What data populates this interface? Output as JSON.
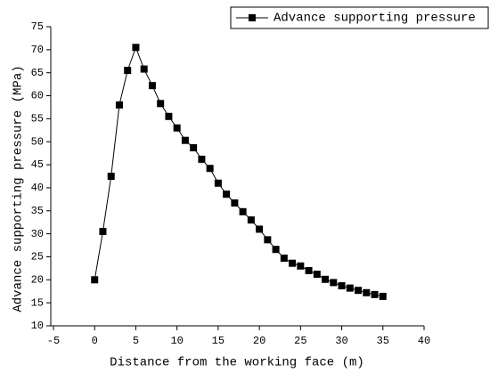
{
  "chart_data": {
    "type": "line",
    "x_label": "Distance from the working face (m)",
    "y_label": "Advance supporting pressure (MPa)",
    "x": [
      0,
      1,
      2,
      3,
      4,
      5,
      6,
      7,
      8,
      9,
      10,
      11,
      12,
      13,
      14,
      15,
      16,
      17,
      18,
      19,
      20,
      21,
      22,
      23,
      24,
      25,
      26,
      27,
      28,
      29,
      30,
      31,
      32,
      33,
      34,
      35
    ],
    "series": [
      {
        "name": "Advance supporting pressure",
        "color": "#000000",
        "values": [
          20,
          30.5,
          42.5,
          58,
          65.5,
          70.5,
          65.8,
          62.2,
          58.3,
          55.5,
          53,
          50.3,
          48.7,
          46.2,
          44.2,
          41,
          38.6,
          36.7,
          34.8,
          33,
          31,
          28.7,
          26.6,
          24.7,
          23.6,
          23,
          22,
          21.2,
          20.1,
          19.4,
          18.7,
          18.2,
          17.7,
          17.2,
          16.8,
          16.4
        ]
      }
    ],
    "xlim": [
      -5,
      40
    ],
    "xticks": [
      -5,
      0,
      5,
      10,
      15,
      20,
      25,
      30,
      35,
      40
    ],
    "ylim": [
      10,
      75
    ],
    "yticks": [
      10,
      15,
      20,
      25,
      30,
      35,
      40,
      45,
      50,
      55,
      60,
      65,
      70,
      75
    ],
    "legend": "top-right"
  }
}
